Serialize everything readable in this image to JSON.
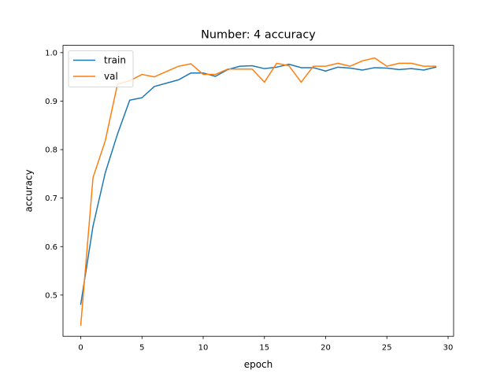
{
  "chart_data": {
    "type": "line",
    "title": "Number: 4 accuracy",
    "xlabel": "epoch",
    "ylabel": "accuracy",
    "xlim": [
      -1.45,
      30.45
    ],
    "ylim": [
      0.415,
      1.015
    ],
    "xticks": [
      0,
      5,
      10,
      15,
      20,
      25,
      30
    ],
    "xtick_labels": [
      "0",
      "5",
      "10",
      "15",
      "20",
      "25",
      "30"
    ],
    "yticks": [
      0.5,
      0.6,
      0.7,
      0.8,
      0.9,
      1.0
    ],
    "ytick_labels": [
      "0.5",
      "0.6",
      "0.7",
      "0.8",
      "0.9",
      "1.0"
    ],
    "grid": false,
    "legend_position": "top-left",
    "x": [
      0,
      1,
      2,
      3,
      4,
      5,
      6,
      7,
      8,
      9,
      10,
      11,
      12,
      13,
      14,
      15,
      16,
      17,
      18,
      19,
      20,
      21,
      22,
      23,
      24,
      25,
      26,
      27,
      28,
      29
    ],
    "series": [
      {
        "name": "train",
        "color": "#1f77b4",
        "values": [
          0.481,
          0.642,
          0.752,
          0.832,
          0.902,
          0.907,
          0.93,
          0.937,
          0.944,
          0.958,
          0.958,
          0.951,
          0.965,
          0.972,
          0.973,
          0.967,
          0.97,
          0.976,
          0.969,
          0.969,
          0.962,
          0.97,
          0.968,
          0.964,
          0.969,
          0.968,
          0.965,
          0.967,
          0.964,
          0.97
        ]
      },
      {
        "name": "val",
        "color": "#ff7f0e",
        "values": [
          0.438,
          0.742,
          0.818,
          0.935,
          0.942,
          0.955,
          0.95,
          0.961,
          0.972,
          0.977,
          0.955,
          0.955,
          0.966,
          0.966,
          0.966,
          0.939,
          0.978,
          0.973,
          0.939,
          0.972,
          0.972,
          0.978,
          0.972,
          0.983,
          0.989,
          0.972,
          0.978,
          0.978,
          0.972,
          0.972
        ]
      }
    ]
  }
}
